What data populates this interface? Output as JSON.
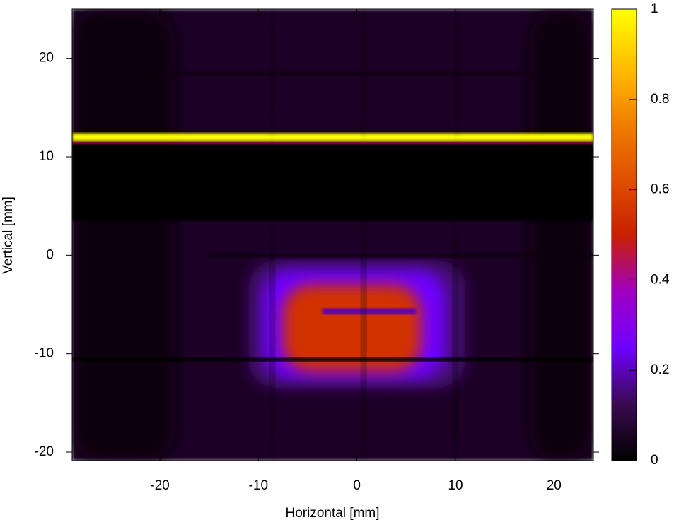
{
  "chart_data": {
    "type": "heatmap",
    "xlabel": "Horizontal [mm]",
    "ylabel": "Vertical [mm]",
    "xlim": [
      -28.9,
      24
    ],
    "ylim": [
      -20.86,
      25
    ],
    "xticks": [
      -20,
      -10,
      0,
      10,
      20
    ],
    "yticks": [
      -20,
      -10,
      0,
      10,
      20
    ],
    "colorbar": {
      "lim": [
        0,
        1
      ],
      "ticks": [
        0,
        0.2,
        0.4,
        0.6,
        0.8,
        1
      ],
      "colormap": [
        "#000000",
        "#3a0a50",
        "#7000ff",
        "#a000c0",
        "#c82000",
        "#e05000",
        "#f08000",
        "#ffc000",
        "#ffff00"
      ]
    },
    "cells": [
      {
        "x": [
          -28.9,
          24
        ],
        "y": [
          -20.86,
          25
        ],
        "value": 0.06
      },
      {
        "x": [
          -28.9,
          -18.5
        ],
        "y": [
          -20.86,
          25
        ],
        "value": 0.02
      },
      {
        "x": [
          17.5,
          24
        ],
        "y": [
          -20.86,
          25
        ],
        "value": 0.025
      },
      {
        "x": [
          -28.9,
          24
        ],
        "y": [
          3.5,
          11.3
        ],
        "value": 0
      },
      {
        "x": [
          -28.9,
          24
        ],
        "y": [
          11.3,
          11.6
        ],
        "value": 0.45
      },
      {
        "x": [
          -28.9,
          24
        ],
        "y": [
          11.6,
          12.4
        ],
        "value": 1
      },
      {
        "x": [
          -11,
          11
        ],
        "y": [
          -13.5,
          -0.5
        ],
        "value": 0.15
      },
      {
        "x": [
          -9.5,
          9
        ],
        "y": [
          -12.5,
          -1.5
        ],
        "value": 0.25
      },
      {
        "x": [
          -7.5,
          6.5
        ],
        "y": [
          -11.8,
          -3
        ],
        "value": 0.55
      },
      {
        "x": [
          -3.5,
          6
        ],
        "y": [
          -6,
          -5.4
        ],
        "value": 0.2
      },
      {
        "x": [
          -8.8,
          -8.4
        ],
        "y": [
          -20.86,
          3.5
        ],
        "value": 0.01
      },
      {
        "x": [
          0.5,
          0.9
        ],
        "y": [
          -20.86,
          3.5
        ],
        "value": 0.01
      },
      {
        "x": [
          9.8,
          10.2
        ],
        "y": [
          -20.86,
          3.5
        ],
        "value": 0.02
      },
      {
        "x": [
          -28.9,
          24
        ],
        "y": [
          -10.8,
          -10.4
        ],
        "value": 0.01
      },
      {
        "x": [
          -15,
          24
        ],
        "y": [
          -0.2,
          0.2
        ],
        "value": 0.02
      },
      {
        "x": [
          -8.8,
          -8.4
        ],
        "y": [
          12.4,
          25
        ],
        "value": 0.02
      },
      {
        "x": [
          0.5,
          0.9
        ],
        "y": [
          12.4,
          25
        ],
        "value": 0.02
      },
      {
        "x": [
          10,
          10.4
        ],
        "y": [
          12.4,
          25
        ],
        "value": 0.02
      },
      {
        "x": [
          -20,
          18
        ],
        "y": [
          18.3,
          18.7
        ],
        "value": 0.02
      }
    ]
  }
}
